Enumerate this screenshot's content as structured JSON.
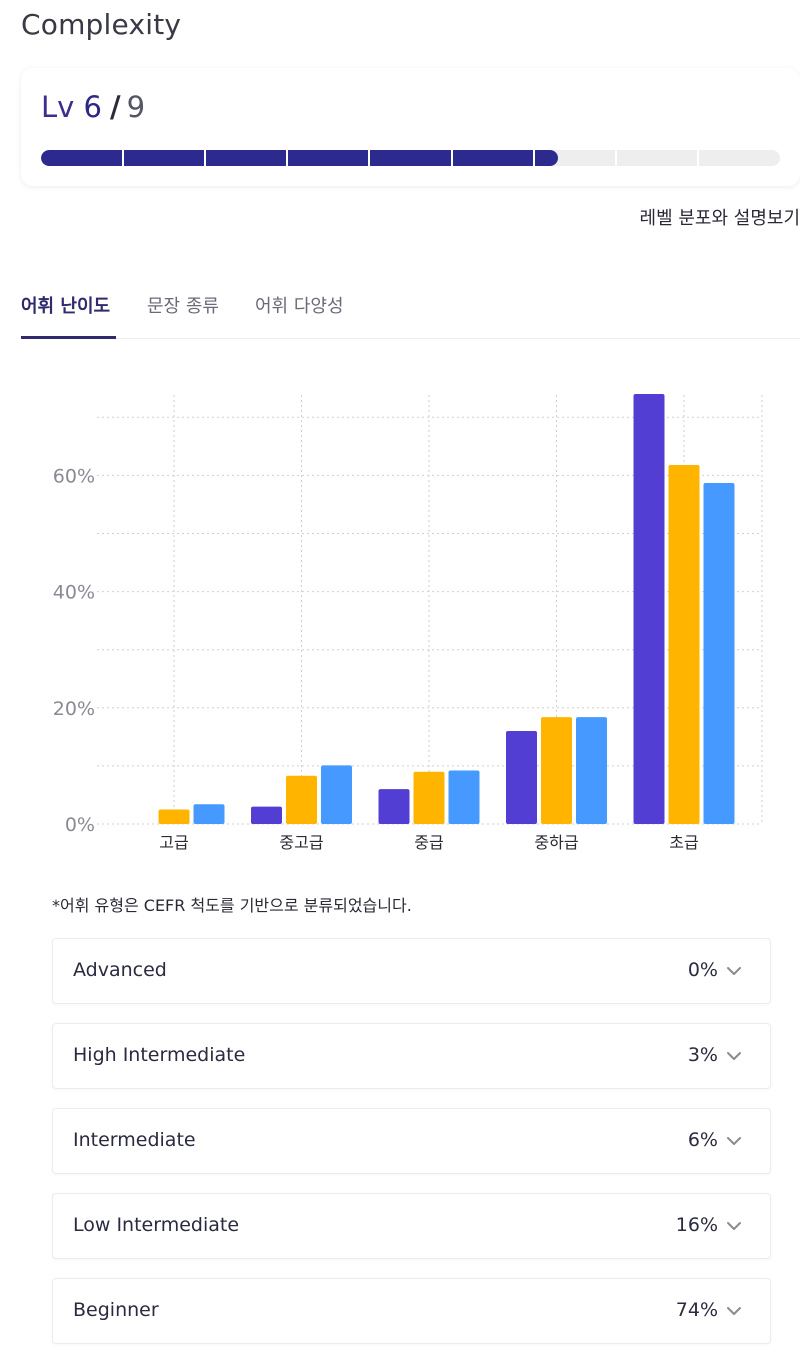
{
  "page": {
    "title": "Complexity"
  },
  "level": {
    "prefix": "Lv",
    "current": "6",
    "separator": "/",
    "max": "9",
    "progress_fraction": 0.7,
    "segments": 9,
    "accent_color": "#2c2a8f",
    "track_color": "#eeeeef",
    "link_label": "레벨 분포와 설명보기"
  },
  "tabs": [
    {
      "label": "어휘 난이도",
      "active": true
    },
    {
      "label": "문장 종류",
      "active": false
    },
    {
      "label": "어휘 다양성",
      "active": false
    }
  ],
  "chart_data": {
    "type": "bar",
    "categories": [
      "고급",
      "중고급",
      "중급",
      "중하급",
      "초급"
    ],
    "series": [
      {
        "color": "#523ed3",
        "values": [
          0,
          3,
          6,
          16,
          74
        ]
      },
      {
        "color": "#ffb400",
        "values": [
          2.5,
          8.3,
          9,
          18.4,
          61.8
        ]
      },
      {
        "color": "#4699ff",
        "values": [
          3.4,
          10.1,
          9.2,
          18.4,
          58.7
        ]
      }
    ],
    "yticks": [
      "0%",
      "20%",
      "40%",
      "60%"
    ],
    "ytick_values": [
      0,
      20,
      40,
      60
    ],
    "ylim": [
      0,
      75
    ],
    "grid": true,
    "title": "",
    "xlabel": "",
    "ylabel": ""
  },
  "footnote": "*어휘 유형은 CEFR 척도를 기반으로 분류되었습니다.",
  "breakdown": [
    {
      "label": "Advanced",
      "value": "0%",
      "icon": "chevron-down-icon"
    },
    {
      "label": "High Intermediate",
      "value": "3%",
      "icon": "chevron-down-icon"
    },
    {
      "label": "Intermediate",
      "value": "6%",
      "icon": "chevron-down-icon"
    },
    {
      "label": "Low Intermediate",
      "value": "16%",
      "icon": "chevron-down-icon"
    },
    {
      "label": "Beginner",
      "value": "74%",
      "icon": "chevron-down-icon"
    }
  ]
}
